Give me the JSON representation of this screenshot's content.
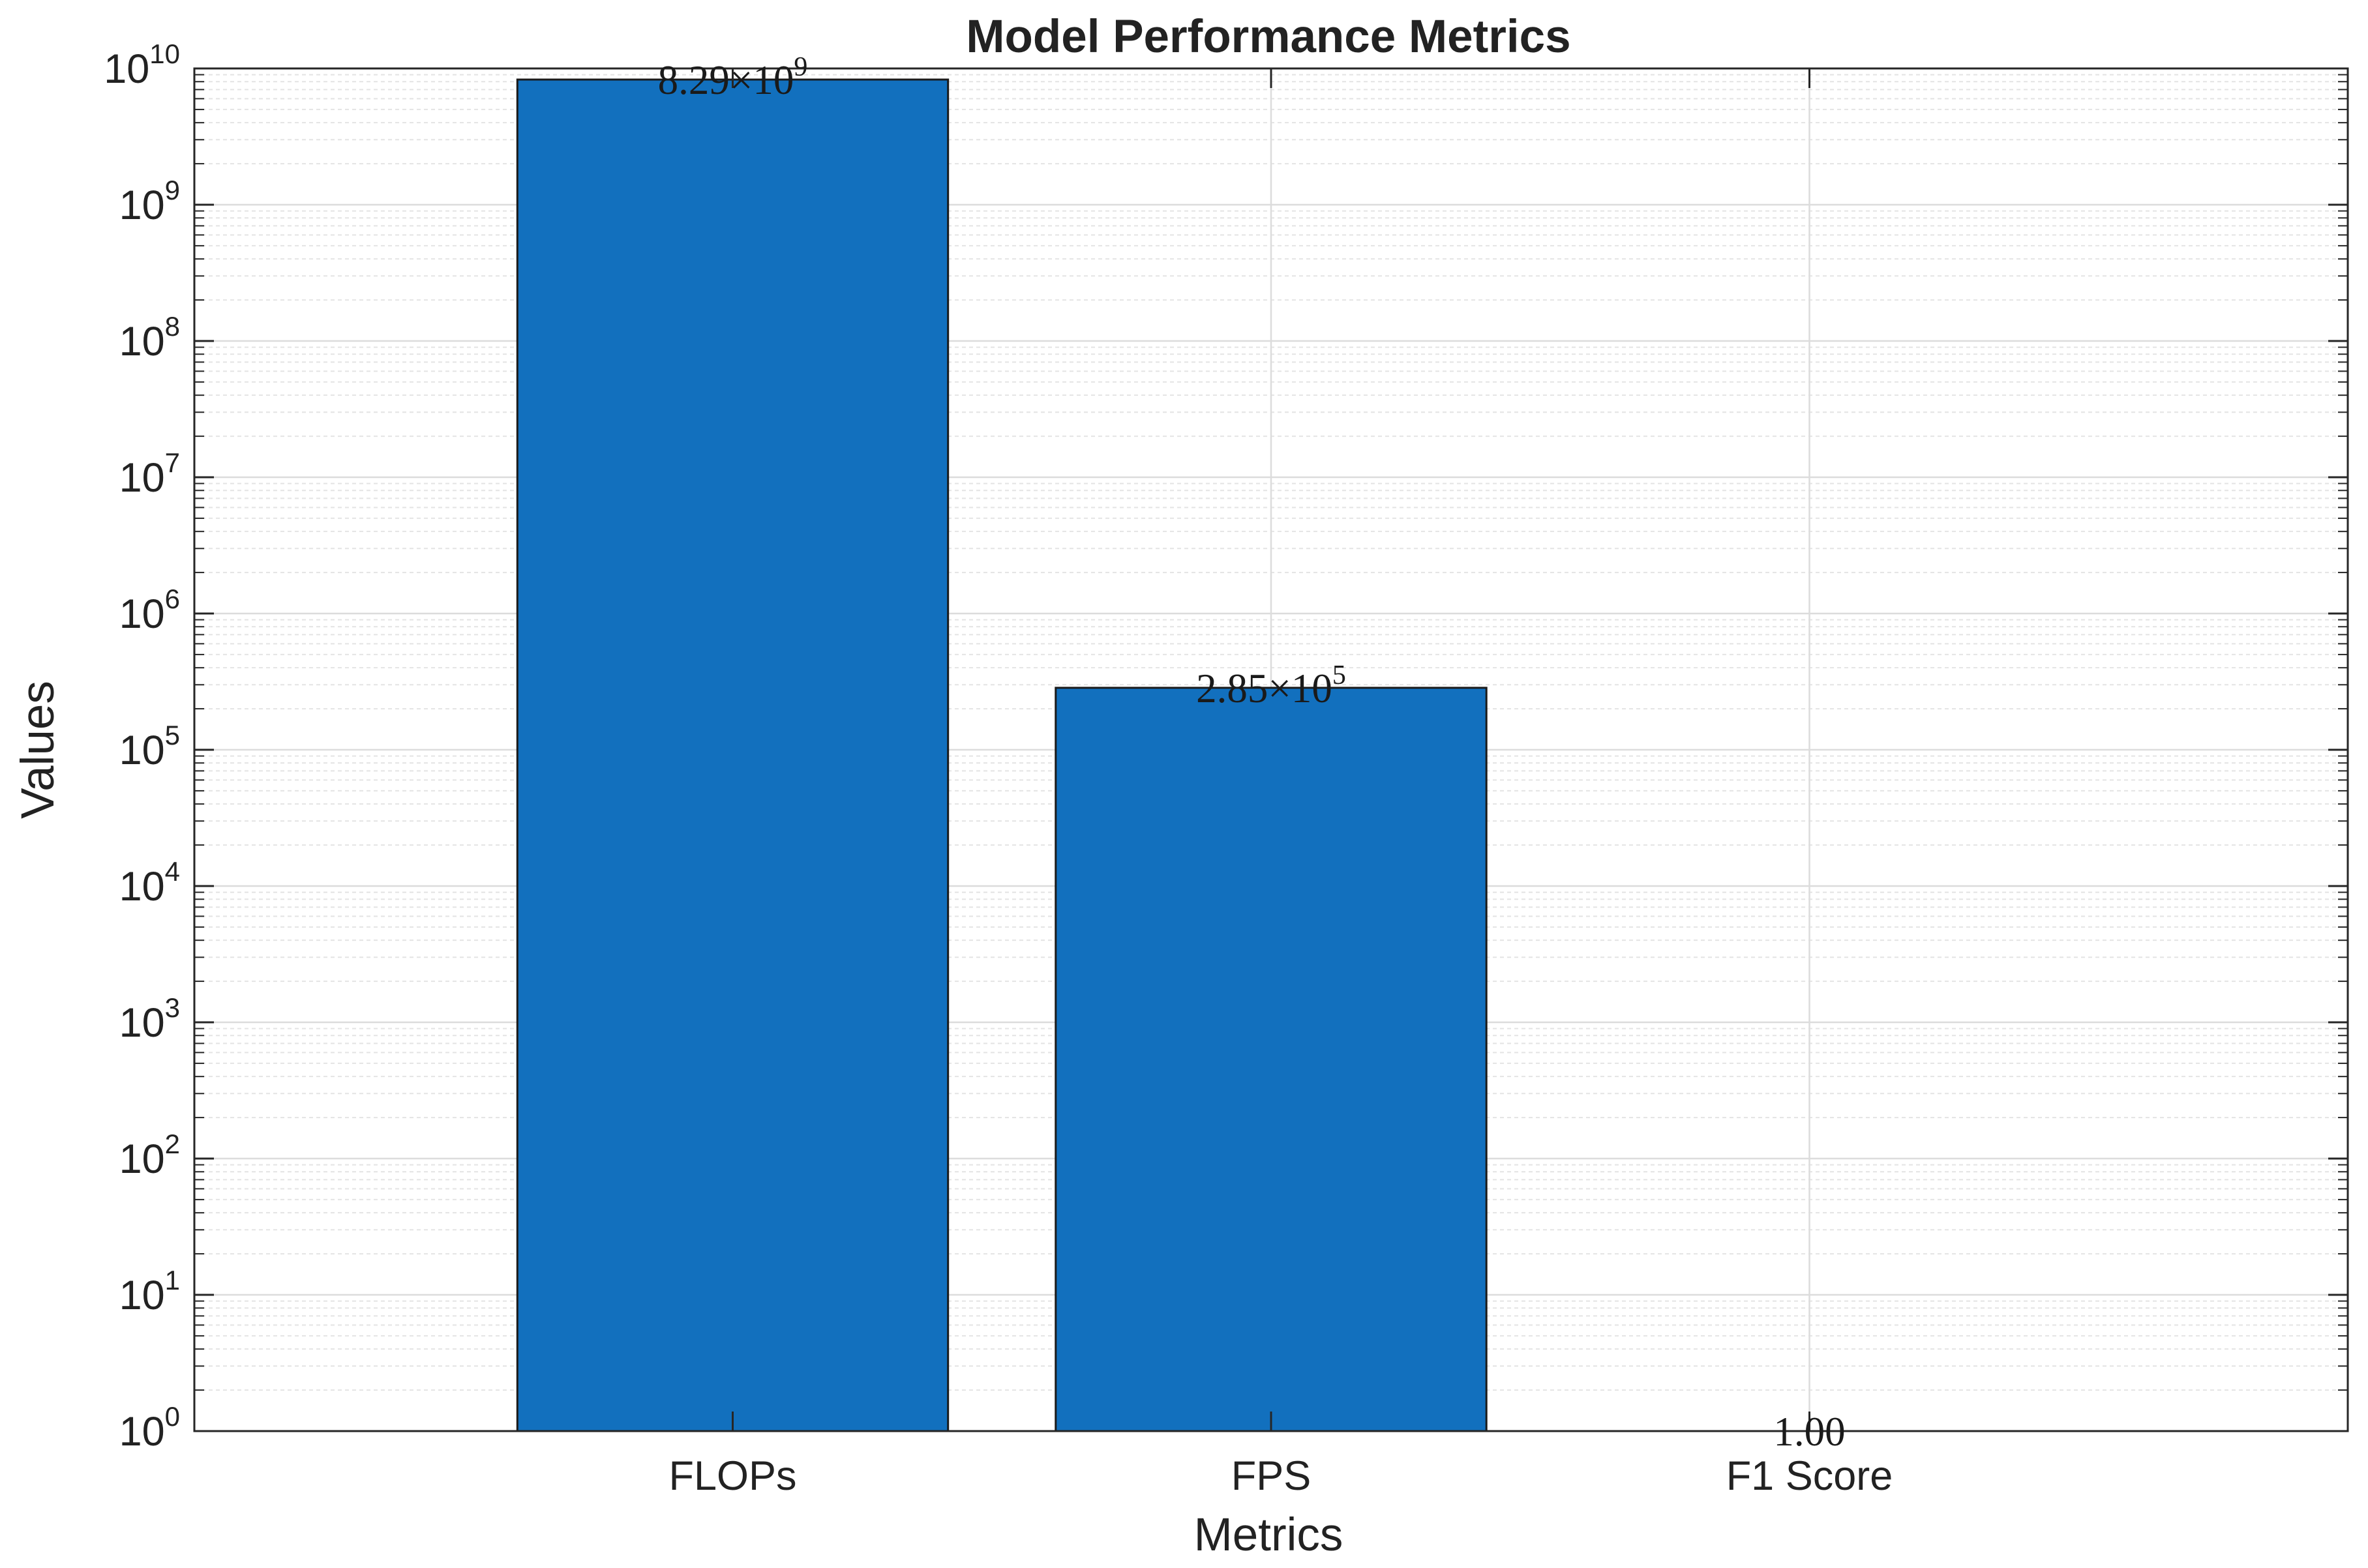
{
  "chart_data": {
    "type": "bar",
    "title": "Model Performance Metrics",
    "xlabel": "Metrics",
    "ylabel": "Values",
    "categories": [
      "FLOPs",
      "FPS",
      "F1 Score"
    ],
    "values": [
      8290000000,
      285000,
      1.0
    ],
    "data_labels": [
      {
        "mantissa": "8.29",
        "times": "×",
        "base": "10",
        "exp": "9"
      },
      {
        "mantissa": "2.85",
        "times": "×",
        "base": "10",
        "exp": "5"
      },
      {
        "mantissa": "1.00",
        "times": "",
        "base": "",
        "exp": ""
      }
    ],
    "y_scale": "log",
    "ylim": [
      1,
      10000000000
    ],
    "y_ticks": [
      {
        "base": "10",
        "exp": "0"
      },
      {
        "base": "10",
        "exp": "1"
      },
      {
        "base": "10",
        "exp": "2"
      },
      {
        "base": "10",
        "exp": "3"
      },
      {
        "base": "10",
        "exp": "4"
      },
      {
        "base": "10",
        "exp": "5"
      },
      {
        "base": "10",
        "exp": "6"
      },
      {
        "base": "10",
        "exp": "7"
      },
      {
        "base": "10",
        "exp": "8"
      },
      {
        "base": "10",
        "exp": "9"
      },
      {
        "base": "10",
        "exp": "10"
      }
    ],
    "grid": true,
    "minor_grid": true,
    "bar_color": "#1270BE",
    "bar_edge_color": "#1a1a1a"
  }
}
